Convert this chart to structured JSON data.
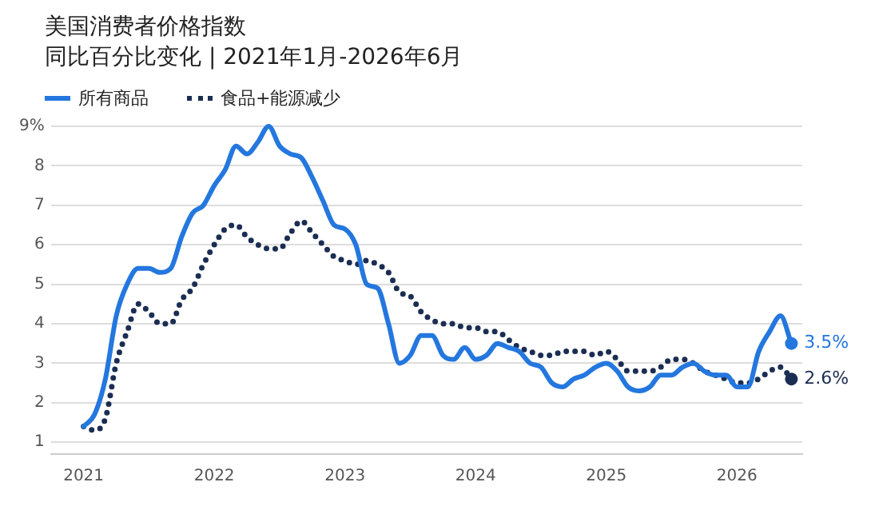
{
  "chart_data": {
    "type": "line",
    "title": "美国消费者价格指数",
    "subtitle": "同比百分比变化 | 2021年1月-2026年6月",
    "x": [
      "2021-01",
      "2021-02",
      "2021-03",
      "2021-04",
      "2021-05",
      "2021-06",
      "2021-07",
      "2021-08",
      "2021-09",
      "2021-10",
      "2021-11",
      "2021-12",
      "2022-01",
      "2022-02",
      "2022-03",
      "2022-04",
      "2022-05",
      "2022-06",
      "2022-07",
      "2022-08",
      "2022-09",
      "2022-10",
      "2022-11",
      "2022-12",
      "2023-01",
      "2023-02",
      "2023-03",
      "2023-04",
      "2023-05",
      "2023-06",
      "2023-07",
      "2023-08",
      "2023-09",
      "2023-10",
      "2023-11",
      "2023-12",
      "2024-01",
      "2024-02",
      "2024-03",
      "2024-04",
      "2024-05",
      "2024-06",
      "2024-07",
      "2024-08",
      "2024-09",
      "2024-10",
      "2024-11",
      "2024-12",
      "2025-01",
      "2025-02",
      "2025-03",
      "2025-04",
      "2025-05",
      "2025-06",
      "2025-07",
      "2025-08",
      "2025-09",
      "2025-10",
      "2025-11",
      "2025-12",
      "2026-01",
      "2026-02",
      "2026-03",
      "2026-04",
      "2026-05",
      "2026-06"
    ],
    "series": [
      {
        "name": "所有商品",
        "color": "#2477de",
        "line_style": "solid",
        "values": [
          1.4,
          1.7,
          2.6,
          4.2,
          5.0,
          5.4,
          5.4,
          5.3,
          5.4,
          6.2,
          6.8,
          7.0,
          7.5,
          7.9,
          8.5,
          8.3,
          8.6,
          9.0,
          8.5,
          8.3,
          8.2,
          7.7,
          7.1,
          6.5,
          6.4,
          6.0,
          5.0,
          4.9,
          4.0,
          3.0,
          3.2,
          3.7,
          3.7,
          3.2,
          3.1,
          3.4,
          3.1,
          3.2,
          3.5,
          3.4,
          3.3,
          3.0,
          2.9,
          2.5,
          2.4,
          2.6,
          2.7,
          2.9,
          3.0,
          2.8,
          2.4,
          2.3,
          2.4,
          2.7,
          2.7,
          2.9,
          3.0,
          2.8,
          2.7,
          2.7,
          2.4,
          2.4,
          3.3,
          3.8,
          4.2,
          3.5
        ]
      },
      {
        "name": "食品+能源减少",
        "color": "#1b2d52",
        "line_style": "dotted",
        "values": [
          1.4,
          1.3,
          1.6,
          3.0,
          3.8,
          4.5,
          4.3,
          4.0,
          4.0,
          4.6,
          4.9,
          5.5,
          6.0,
          6.4,
          6.5,
          6.2,
          6.0,
          5.9,
          5.9,
          6.3,
          6.6,
          6.3,
          6.0,
          5.7,
          5.6,
          5.5,
          5.6,
          5.5,
          5.3,
          4.8,
          4.7,
          4.3,
          4.1,
          4.0,
          4.0,
          3.9,
          3.9,
          3.8,
          3.8,
          3.6,
          3.4,
          3.3,
          3.2,
          3.2,
          3.3,
          3.3,
          3.3,
          3.2,
          3.3,
          3.1,
          2.8,
          2.8,
          2.8,
          2.9,
          3.1,
          3.1,
          3.0,
          2.8,
          2.7,
          2.6,
          2.5,
          2.5,
          2.6,
          2.8,
          2.9,
          2.6
        ]
      }
    ],
    "annotations": [
      {
        "text": "3.5%",
        "x": "2026-06",
        "y": 3.5
      },
      {
        "text": "2.6%",
        "x": "2026-06",
        "y": 2.6
      }
    ],
    "xlim": [
      "2020-10",
      "2026-07"
    ],
    "xticks": [
      "2021",
      "2022",
      "2023",
      "2024",
      "2025",
      "2026"
    ],
    "ylim": [
      0.7,
      9
    ],
    "yticks": [
      1,
      2,
      3,
      4,
      5,
      6,
      7,
      8,
      {
        "value": 9,
        "label": "9%"
      }
    ],
    "grid": "y",
    "legend": "top left",
    "marker": "none"
  }
}
